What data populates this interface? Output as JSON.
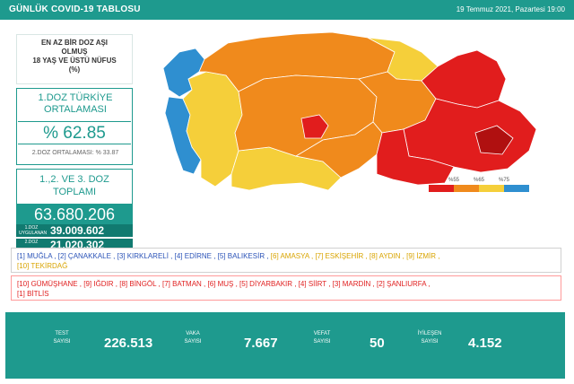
{
  "header": {
    "title": "GÜNLÜK COVID-19 TABLOSU",
    "date": "19 Temmuz 2021, Pazartesi 19:00"
  },
  "left": {
    "heading_lines": [
      "EN AZ BİR DOZ AŞI",
      "OLMUŞ",
      "18 YAŞ VE ÜSTÜ NÜFUS",
      "(%)"
    ],
    "dose1_label_lines": [
      "1.DOZ TÜRKİYE",
      "ORTALAMASI"
    ],
    "dose1_value": "% 62.85",
    "dose2_text": "2.DOZ ORTALAMASI: % 33.87",
    "total_label_lines": [
      "1.,2. VE 3. DOZ",
      "TOPLAMI"
    ],
    "total_value": "63.680.206",
    "sub1_label_lines": [
      "1.DOZ",
      "UYGULANAN"
    ],
    "sub1_value": "39.009.602",
    "sub2_label": "2.DOZ",
    "sub2_value": "21.020.302"
  },
  "map": {
    "colors": {
      "blue": "#2f8fd0",
      "yellow": "#f5cf3a",
      "orange": "#f08a1c",
      "red": "#e11d1d",
      "dark_red": "#b01010"
    },
    "legend_labels": [
      "%55",
      "%65",
      "%75"
    ]
  },
  "lists": {
    "top_row1": [
      {
        "text": "[1] MUĞLA , [2] ÇANAKKALE , [3] KIRKLARELİ , [4] EDİRNE , [5] BALIKESİR ,",
        "color": "blue"
      },
      {
        "text": " [6] AMASYA , [7] ESKİŞEHİR , [8] AYDIN , [9] İZMİR ,",
        "color": "yellow"
      }
    ],
    "top_row2": "[10] TEKİRDAĞ",
    "bottom_row1": "[10] GÜMÜŞHANE , [9] IĞDIR , [8] BİNGÖL , [7] BATMAN , [6] MUŞ , [5] DİYARBAKIR , [4] SİİRT , [3] MARDİN , [2] ŞANLIURFA ,",
    "bottom_row2": "[1] BİTLİS"
  },
  "stats": [
    {
      "label_lines": [
        "TEST",
        "SAYISI"
      ],
      "value": "226.513"
    },
    {
      "label_lines": [
        "VAKA",
        "SAYISI"
      ],
      "value": "7.667"
    },
    {
      "label_lines": [
        "VEFAT",
        "SAYISI"
      ],
      "value": "50"
    },
    {
      "label_lines": [
        "İYİLEŞEN",
        "SAYISI"
      ],
      "value": "4.152"
    }
  ]
}
